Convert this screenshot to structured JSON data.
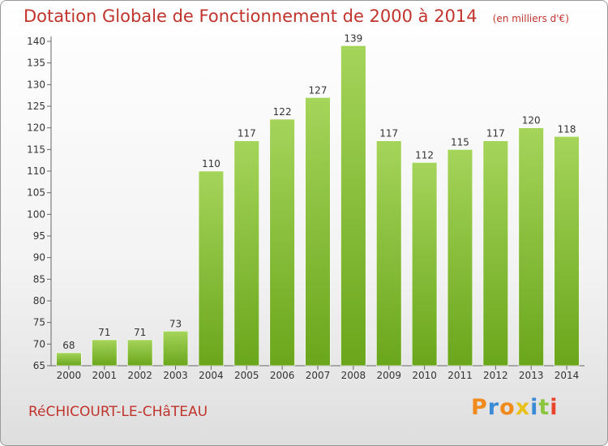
{
  "chart_data": {
    "type": "bar",
    "title": "Dotation Globale de Fonctionnement de 2000 à 2014",
    "unit_note": "(en milliers d'€)",
    "categories": [
      "2000",
      "2001",
      "2002",
      "2003",
      "2004",
      "2005",
      "2006",
      "2007",
      "2008",
      "2009",
      "2010",
      "2011",
      "2012",
      "2013",
      "2014"
    ],
    "values": [
      68,
      71,
      71,
      73,
      110,
      117,
      122,
      127,
      139,
      117,
      112,
      115,
      117,
      120,
      118
    ],
    "ylim": [
      65,
      140
    ],
    "yticks": [
      65,
      70,
      75,
      80,
      85,
      90,
      95,
      100,
      105,
      110,
      115,
      120,
      125,
      130,
      135,
      140
    ],
    "xlabel": "",
    "ylabel": "",
    "grid": false,
    "bar_color_light": "#a5d45a",
    "bar_color_dark": "#6aa61c",
    "title_color": "#c0342c"
  },
  "footer": {
    "commune": "RéCHICOURT-LE-CHâTEAU"
  },
  "logo": {
    "text": "Proxiti",
    "letters": [
      {
        "char": "P",
        "color": "#f08a1c"
      },
      {
        "char": "r",
        "color": "#3a8ad6"
      },
      {
        "char": "o",
        "color": "#f08a1c"
      },
      {
        "char": "x",
        "color": "#e8c21a"
      },
      {
        "char": "i",
        "color": "#3a8ad6"
      },
      {
        "char": "t",
        "color": "#8cc63f"
      },
      {
        "char": "i",
        "color": "#e8452c"
      }
    ]
  }
}
